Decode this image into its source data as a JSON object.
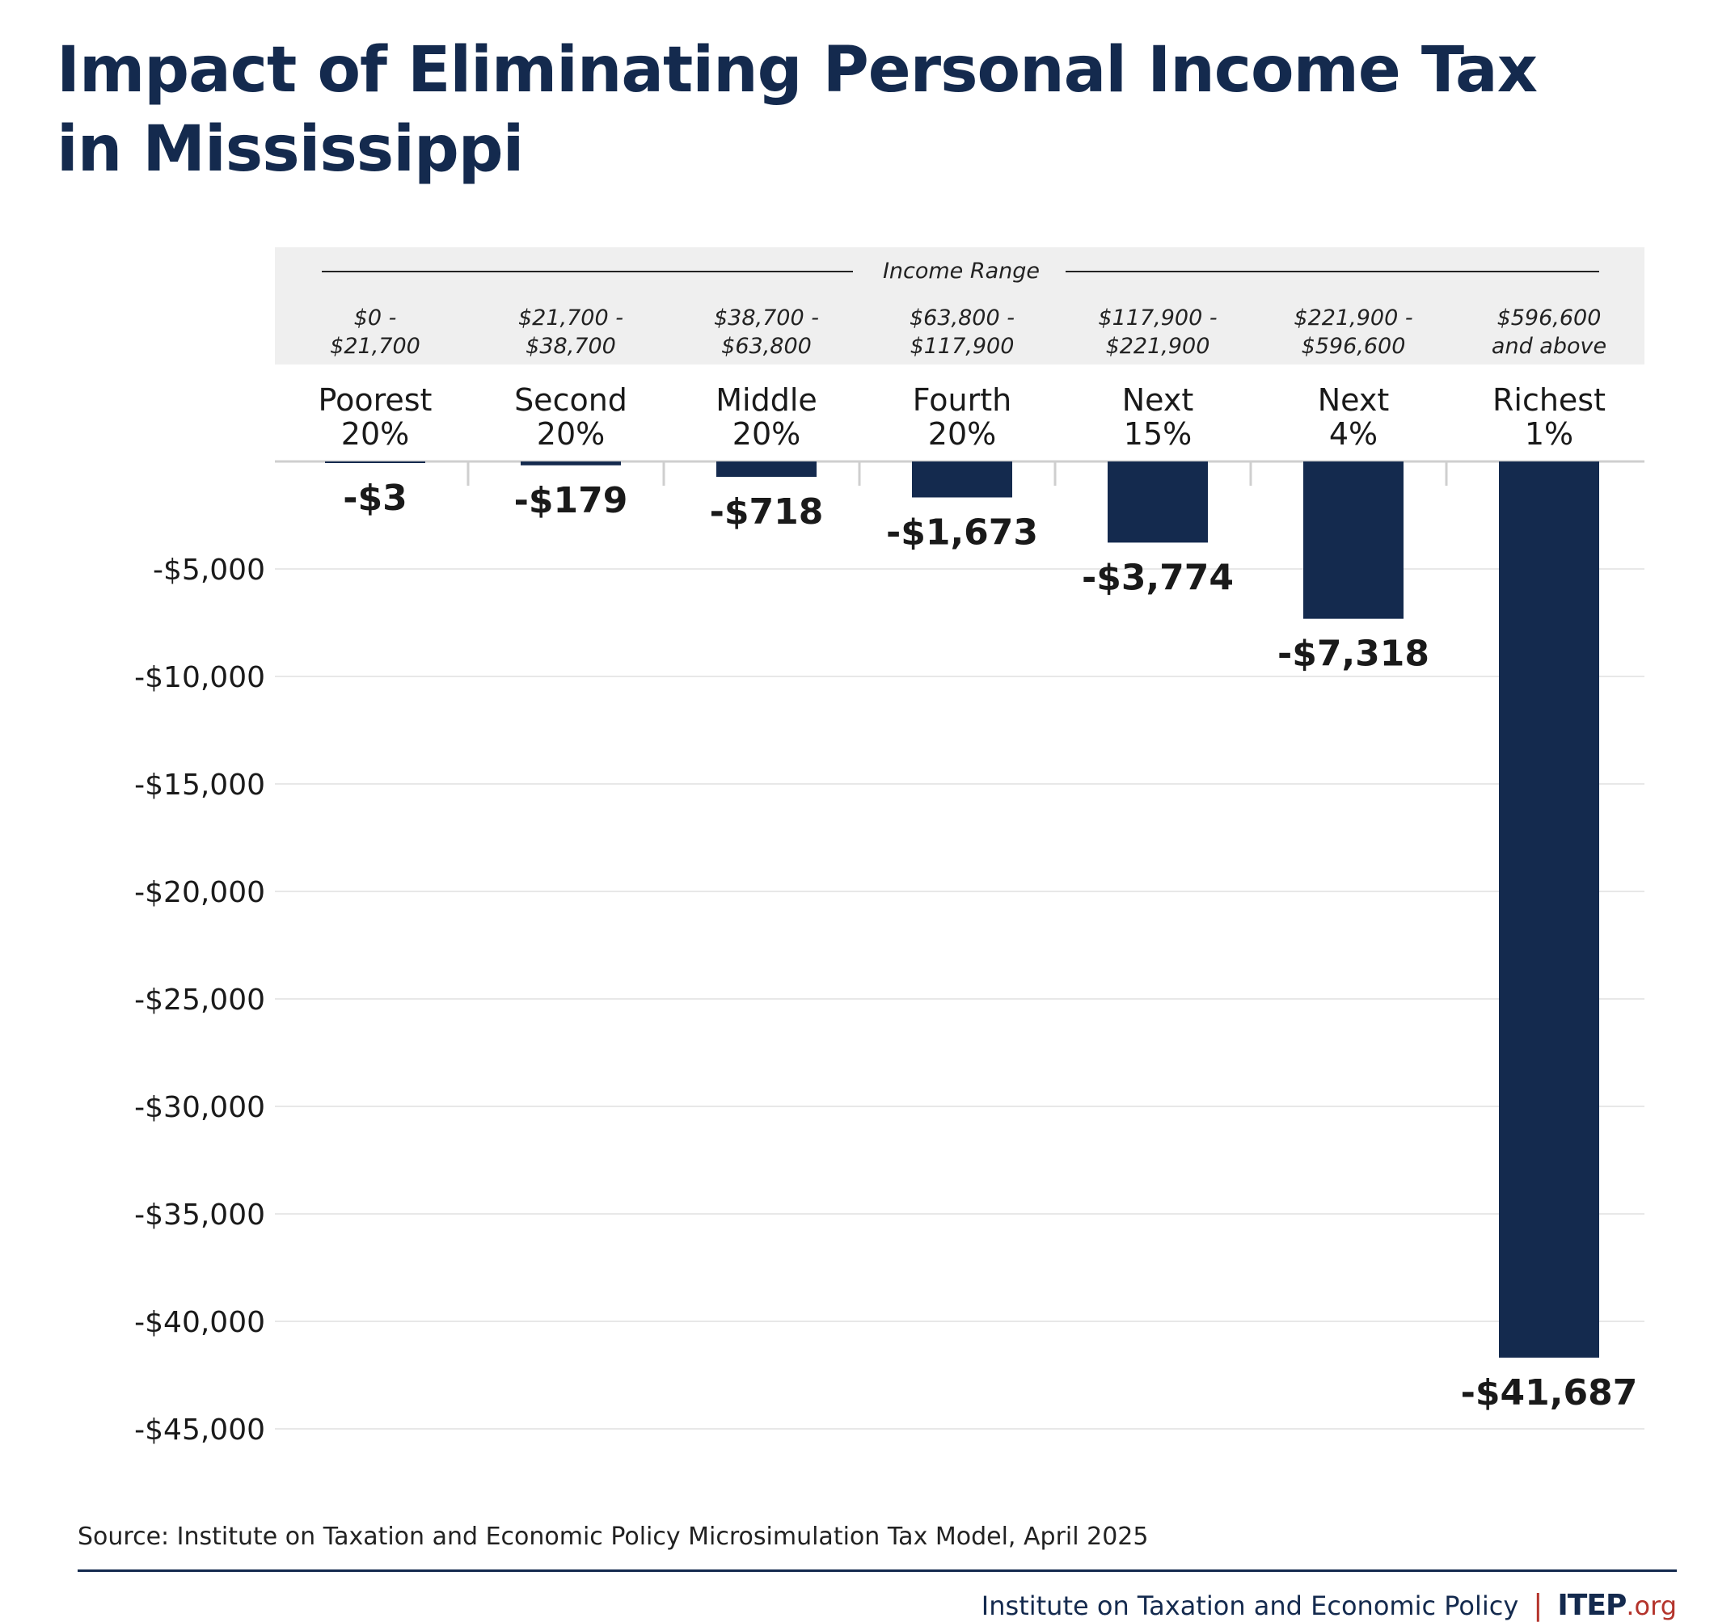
{
  "title_lines": [
    "Impact of Eliminating Personal Income Tax",
    "in Mississippi"
  ],
  "source": "Source: Institute on Taxation and Economic Policy Microsimulation Tax Model, April 2025",
  "footer": {
    "org_name": "Institute on Taxation and Economic Policy",
    "separator": "|",
    "logo_main": "ITEP",
    "logo_suffix": ".org"
  },
  "colors": {
    "bar": "#142a4e",
    "title": "#142a4e",
    "header_band": "#efefef",
    "grid": "#e8e8e8",
    "accent": "#b4342c"
  },
  "chart_data": {
    "type": "bar",
    "header_label": "Income Range",
    "categories": [
      {
        "range": [
          "$0 -",
          "$21,700"
        ],
        "group": [
          "Poorest",
          "20%"
        ]
      },
      {
        "range": [
          "$21,700 -",
          "$38,700"
        ],
        "group": [
          "Second",
          "20%"
        ]
      },
      {
        "range": [
          "$38,700 -",
          "$63,800"
        ],
        "group": [
          "Middle",
          "20%"
        ]
      },
      {
        "range": [
          "$63,800 -",
          "$117,900"
        ],
        "group": [
          "Fourth",
          "20%"
        ]
      },
      {
        "range": [
          "$117,900 -",
          "$221,900"
        ],
        "group": [
          "Next",
          "15%"
        ]
      },
      {
        "range": [
          "$221,900 -",
          "$596,600"
        ],
        "group": [
          "Next",
          "4%"
        ]
      },
      {
        "range": [
          "$596,600",
          "and above"
        ],
        "group": [
          "Richest",
          "1%"
        ]
      }
    ],
    "values": [
      -3,
      -179,
      -718,
      -1673,
      -3774,
      -7318,
      -41687
    ],
    "value_labels": [
      "-$3",
      "-$179",
      "-$718",
      "-$1,673",
      "-$3,774",
      "-$7,318",
      "-$41,687"
    ],
    "ylim": [
      -45000,
      0
    ],
    "yticks": [
      -5000,
      -10000,
      -15000,
      -20000,
      -25000,
      -30000,
      -35000,
      -40000,
      -45000
    ],
    "ytick_labels": [
      "-$5,000",
      "-$10,000",
      "-$15,000",
      "-$20,000",
      "-$25,000",
      "-$30,000",
      "-$35,000",
      "-$40,000",
      "-$45,000"
    ],
    "grid": true
  }
}
